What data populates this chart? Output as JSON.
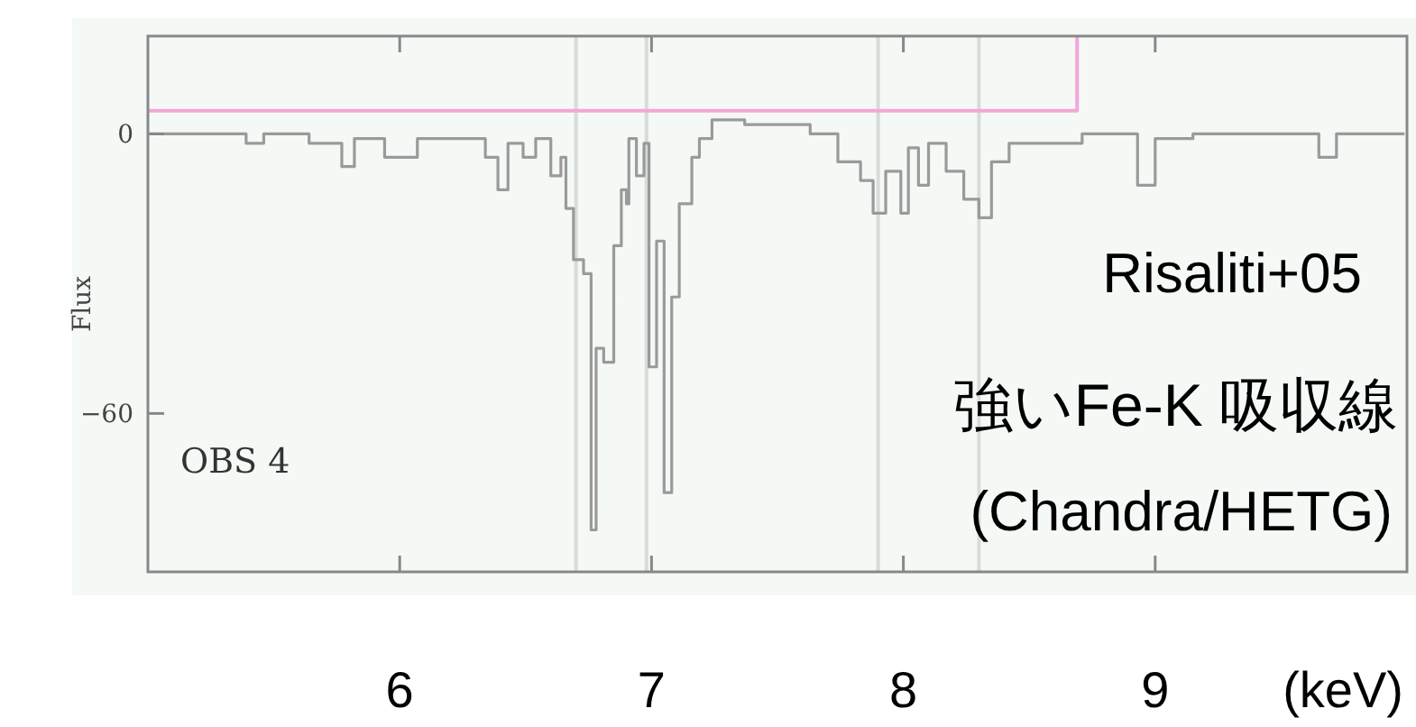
{
  "chart_data": {
    "type": "step",
    "xlabel": "(keV)",
    "ylabel": "Flux",
    "xlim": [
      5,
      10
    ],
    "ylim": [
      -94,
      21
    ],
    "xticks": [
      6,
      7,
      8,
      9
    ],
    "yticks": [
      0,
      -60
    ],
    "series": [
      {
        "color": "#9a9a9a",
        "x": [
          5.0,
          5.1,
          5.24,
          5.39,
          5.46,
          5.64,
          5.77,
          5.82,
          5.94,
          6.07,
          6.25,
          6.34,
          6.39,
          6.43,
          6.49,
          6.54,
          6.6,
          6.64,
          6.66,
          6.69,
          6.73,
          6.76,
          6.78,
          6.81,
          6.85,
          6.88,
          6.9,
          6.91,
          6.94,
          6.97,
          6.99,
          7.02,
          7.05,
          7.08,
          7.11,
          7.16,
          7.19,
          7.24,
          7.37,
          7.63,
          7.74,
          7.83,
          7.88,
          7.93,
          7.99,
          8.02,
          8.06,
          8.1,
          8.17,
          8.24,
          8.3,
          8.35,
          8.42,
          8.71,
          8.93,
          9.0,
          9.15,
          9.65,
          9.72,
          9.99
        ],
        "values": [
          0,
          0,
          0,
          -2,
          0,
          -2,
          -7,
          -1,
          -5,
          -1,
          -1,
          -5,
          -12,
          -2,
          -5,
          -1,
          -9,
          -5,
          -16,
          -27,
          -30,
          -85,
          -46,
          -49,
          -24,
          -12,
          -15,
          -1,
          -9,
          -2,
          -50,
          -23,
          -77,
          -35,
          -15,
          -5,
          -1,
          3,
          2,
          0,
          -6,
          -10,
          -17,
          -8,
          -17,
          -3,
          -11,
          -2,
          -8,
          -14,
          -18,
          -6,
          -2,
          0,
          -11,
          -1,
          0,
          -5,
          0,
          0
        ]
      },
      {
        "type": "line",
        "color": "#f4a6d8",
        "x": [
          5.0,
          8.69,
          8.69
        ],
        "values": [
          5,
          5,
          21
        ]
      }
    ],
    "ref_lines": [
      {
        "axis": "x",
        "value": 6.7,
        "color": "#d8dcd8"
      },
      {
        "axis": "x",
        "value": 6.98,
        "color": "#d8dcd8"
      },
      {
        "axis": "x",
        "value": 7.9,
        "color": "#d8dcd8"
      },
      {
        "axis": "x",
        "value": 8.3,
        "color": "#d8dcd8"
      }
    ],
    "annotations": [
      "OBS 4",
      "Risaliti+05",
      "強いFe-K 吸収線",
      "(Chandra/HETG)"
    ]
  }
}
